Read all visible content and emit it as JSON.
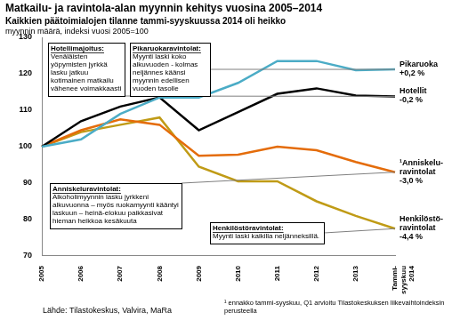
{
  "chart_data": {
    "type": "line",
    "title": "Matkailu- ja ravintola-alan myynnin kehitys vuosina 2005–2014",
    "subtitle": "Kaikkien päätoimialojen tilanne tammi-syyskuussa 2014 oli heikko",
    "y_label": "myynnin määrä, indeksi vuosi 2005=100",
    "categories": [
      "2005",
      "2006",
      "2007",
      "2008",
      "2009",
      "2010",
      "2011",
      "2012",
      "2013",
      "Tammi-syyskuu 2014"
    ],
    "series": [
      {
        "name": "Pikaruoka\n+0,2 %",
        "color": "#4bacc6",
        "values": [
          100,
          102,
          109,
          113.5,
          113.5,
          117.5,
          123.5,
          123.5,
          121,
          121.2
        ]
      },
      {
        "name": "Hotellit\n-0,2 %",
        "color": "#000000",
        "values": [
          100,
          107,
          111,
          113.5,
          104.5,
          109.5,
          114.5,
          116,
          114,
          113.8
        ]
      },
      {
        "name": "¹Anniskelu-\nravintolat\n-3,0 %",
        "color": "#e46c0a",
        "values": [
          100,
          104.5,
          107.5,
          106,
          97.5,
          97.8,
          100,
          99,
          95.8,
          93
        ]
      },
      {
        "name": "Henkilöstö-\nravintolat\n-4,4 %",
        "color": "#c09b16",
        "values": [
          100,
          104,
          106,
          108,
          94.5,
          90.5,
          90.5,
          85,
          81,
          77.5
        ]
      }
    ],
    "ylim": [
      70,
      130
    ],
    "yticks": [
      70,
      80,
      90,
      100,
      110,
      120,
      130
    ],
    "grid": false,
    "annotations": [
      {
        "title": "Hotellimajoitus:",
        "text": "Venäläisten yöpymisten jyrkkä lasku jatkuu kotimainen matkailu vähenee voimakkaasti"
      },
      {
        "title": "Pikaruokaravintolat:",
        "text": "Myynti laski koko alkuvuoden - kolmas neljännes käänsi myynnin edellisen vuoden tasolle"
      },
      {
        "title": "Anniskeluravintolat:",
        "text": "Alkoholimyynnin lasku jyrkkeni alkuvuonna – myös ruokamyynti kääntyi laskuun – heinä-elokuu paikkasivat hieman heikkoa kesäkuuta"
      },
      {
        "title": "Henkilöstöravintolat:",
        "text": "Myynti laski kaikilla neljänneksillä."
      }
    ],
    "source": "Lähde: Tilastokeskus, Valvira, MaRa",
    "footnote": "¹ ennakko tammi-syyskuu, Q1 arvioitu Tilastokeskuksen liikevaihtoindeksin perusteella"
  }
}
